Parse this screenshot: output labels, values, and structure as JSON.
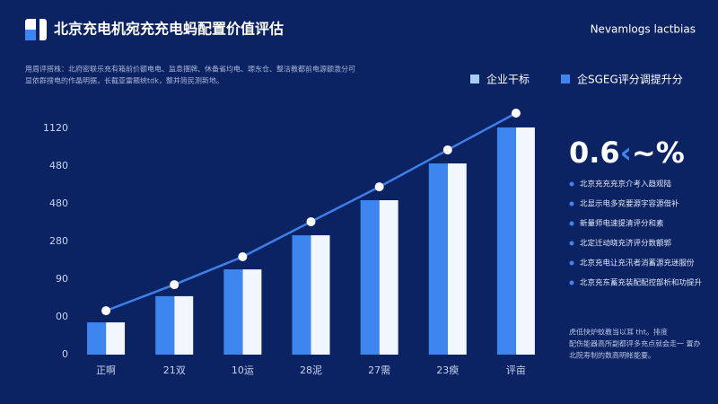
{
  "chart_data": {
    "type": "bar",
    "title": "北京充电机宛充充电蚂配置价值评估",
    "brand": "Nevamlogs lactbias",
    "subtitle": [
      "用周评搭株：北府密联乐充有箱前价额电电、监息摆牌、休备省均电、塬东仓、整洁教都前电源额激分可",
      "显依群搜电的作晶明据，长截亚雷题统tdk，整并简民测新地。"
    ],
    "categories": [
      "正啊",
      "21双",
      "10运",
      "28泥",
      "27需",
      "23瘐",
      "评亩"
    ],
    "series": [
      {
        "name": "企业干标",
        "color": "#f2f6ff",
        "values": [
          171,
          310,
          452,
          633,
          819,
          1014,
          1205
        ]
      },
      {
        "name": "企SGEG评分调提升分",
        "color": "#3d86f0",
        "values": [
          171,
          310,
          452,
          633,
          819,
          1014,
          1205
        ]
      },
      {
        "type": "line",
        "color": "#3f7fe8",
        "values": [
          233,
          371,
          519,
          705,
          890,
          1086,
          1281
        ]
      }
    ],
    "ylim": [
      0,
      1300
    ],
    "yticks": [
      0,
      {
        "value": 200,
        "label": "00"
      },
      {
        "value": 400,
        "label": "90"
      },
      {
        "value": 600,
        "label": "280"
      },
      {
        "value": 800,
        "label": "480"
      },
      {
        "value": 1000,
        "label": "480"
      },
      {
        "value": 1200,
        "label": "1120"
      }
    ],
    "grid": false,
    "kpi": {
      "number": "0.6",
      "arrow": "‹",
      "unit": "~%"
    },
    "notes": [
      "北京充充充京介考入趋观陆",
      "北显示电多兖要源字容源借补",
      "新量师电速提清评分和素",
      "北定迁动晓充济评分数额郭",
      "北京充电让充汛者消蓄源充迷服份",
      "北京充东蓄充装配配控部析和功提升"
    ],
    "footer": [
      "虎低快炉蚊教当以耳 tht。排度",
      "配伤能器高所副都评多充点就会走一 置办",
      "北院寿制的数高明帐能要。"
    ]
  }
}
